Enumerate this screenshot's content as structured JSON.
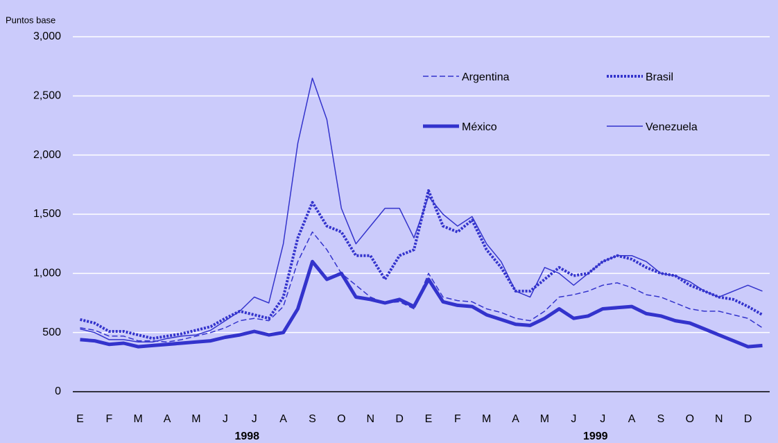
{
  "chart_data": {
    "type": "line",
    "y_label": "Puntos base",
    "categories": [
      "E",
      null,
      "F",
      null,
      "M",
      null,
      "A",
      null,
      "M",
      null,
      "J",
      null,
      "J",
      null,
      "A",
      null,
      "S",
      null,
      "O",
      null,
      "N",
      null,
      "D",
      null,
      "E",
      null,
      "F",
      null,
      "M",
      null,
      "A",
      null,
      "M",
      null,
      "J",
      null,
      "J",
      null,
      "A",
      null,
      "S",
      null,
      "O",
      null,
      "N",
      null,
      "D",
      null
    ],
    "year_labels": [
      "1998",
      "1999"
    ],
    "ylim": [
      0,
      3000
    ],
    "yticks": [
      0,
      {
        "value": 500,
        "label": "500"
      },
      {
        "value": 1000,
        "label": "1,000"
      },
      {
        "value": 1500,
        "label": "1,500"
      },
      {
        "value": 2000,
        "label": "2,000"
      },
      {
        "value": 2500,
        "label": "2,500"
      },
      {
        "value": 3000,
        "label": "3,000"
      }
    ],
    "grid": true,
    "series": [
      {
        "name": "Argentina",
        "color": "#3333cc",
        "width": 1.5,
        "dash": "8,4",
        "values": [
          540,
          520,
          470,
          470,
          430,
          430,
          420,
          440,
          470,
          500,
          540,
          600,
          620,
          600,
          720,
          1100,
          1350,
          1200,
          1000,
          900,
          800,
          750,
          760,
          700,
          1000,
          800,
          770,
          760,
          700,
          670,
          620,
          600,
          680,
          800,
          820,
          850,
          900,
          920,
          880,
          820,
          800,
          750,
          700,
          680,
          680,
          650,
          620,
          540
        ]
      },
      {
        "name": "Brasil",
        "color": "#3333cc",
        "width": 4,
        "dash": "3,2",
        "values": [
          610,
          580,
          510,
          510,
          480,
          450,
          470,
          490,
          520,
          550,
          620,
          680,
          650,
          620,
          800,
          1300,
          1600,
          1400,
          1350,
          1150,
          1150,
          950,
          1150,
          1200,
          1700,
          1400,
          1350,
          1450,
          1200,
          1050,
          850,
          850,
          950,
          1050,
          980,
          1000,
          1100,
          1150,
          1120,
          1050,
          1000,
          980,
          900,
          850,
          800,
          780,
          720,
          650
        ]
      },
      {
        "name": "México",
        "color": "#3333cc",
        "width": 5,
        "dash": "none",
        "values": [
          440,
          430,
          400,
          410,
          380,
          390,
          400,
          410,
          420,
          430,
          460,
          480,
          510,
          480,
          500,
          700,
          1100,
          950,
          1000,
          800,
          780,
          750,
          780,
          720,
          950,
          760,
          730,
          720,
          650,
          610,
          570,
          560,
          620,
          700,
          620,
          640,
          700,
          710,
          720,
          660,
          640,
          600,
          580,
          530,
          480,
          430,
          380,
          390
        ]
      },
      {
        "name": "Venezuela",
        "color": "#3333cc",
        "width": 1.5,
        "dash": "none",
        "values": [
          530,
          500,
          440,
          440,
          420,
          420,
          450,
          470,
          480,
          520,
          600,
          680,
          800,
          750,
          1250,
          2100,
          2650,
          2300,
          1550,
          1250,
          1400,
          1550,
          1550,
          1300,
          1650,
          1500,
          1400,
          1480,
          1250,
          1100,
          850,
          800,
          1050,
          1000,
          900,
          1000,
          1100,
          1150,
          1150,
          1100,
          1000,
          980,
          930,
          850,
          800,
          850,
          900,
          850
        ]
      }
    ]
  }
}
